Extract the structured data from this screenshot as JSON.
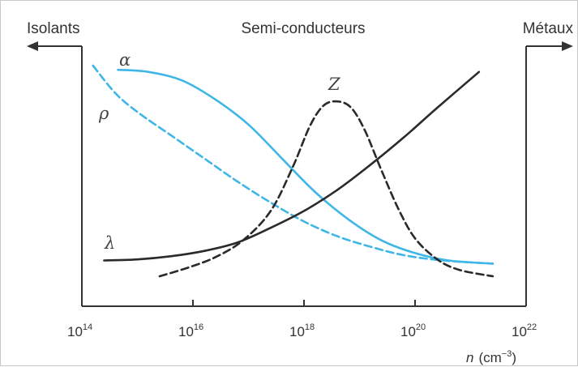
{
  "regions": {
    "left": "Isolants",
    "center": "Semi-conducteurs",
    "right": "Métaux"
  },
  "colors": {
    "axis": "#333333",
    "alpha": "#3fb6e6",
    "rho": "#3fb6e6",
    "lambda": "#2a2a2a",
    "Z": "#2a2a2a"
  },
  "chart_data": {
    "type": "line",
    "xlabel_base": "n",
    "xlabel_unit": "(cm",
    "xlabel_exp": "−3",
    "xlabel_close": ")",
    "xscale": "log",
    "xlim": [
      14,
      22
    ],
    "ylim": [
      0,
      1
    ],
    "ylabel": "",
    "grid": false,
    "xticks": [
      {
        "value": 14,
        "base": "10",
        "exp": "14"
      },
      {
        "value": 16,
        "base": "10",
        "exp": "16"
      },
      {
        "value": 18,
        "base": "10",
        "exp": "18"
      },
      {
        "value": 20,
        "base": "10",
        "exp": "20"
      },
      {
        "value": 22,
        "base": "10",
        "exp": "22"
      }
    ],
    "series": [
      {
        "name": "α",
        "style": "solid",
        "color_key": "alpha",
        "points": [
          [
            14.65,
            0.98
          ],
          [
            15.2,
            0.97
          ],
          [
            15.8,
            0.93
          ],
          [
            16.4,
            0.84
          ],
          [
            17.0,
            0.72
          ],
          [
            17.6,
            0.56
          ],
          [
            18.2,
            0.4
          ],
          [
            18.8,
            0.27
          ],
          [
            19.4,
            0.17
          ],
          [
            20.0,
            0.11
          ],
          [
            20.6,
            0.075
          ],
          [
            21.4,
            0.06
          ]
        ]
      },
      {
        "name": "ρ",
        "style": "dashed",
        "color_key": "rho",
        "points": [
          [
            14.2,
            1.0
          ],
          [
            14.6,
            0.87
          ],
          [
            15.0,
            0.78
          ],
          [
            15.6,
            0.67
          ],
          [
            16.2,
            0.56
          ],
          [
            16.8,
            0.45
          ],
          [
            17.4,
            0.35
          ],
          [
            18.0,
            0.26
          ],
          [
            18.6,
            0.19
          ],
          [
            19.2,
            0.14
          ],
          [
            19.8,
            0.1
          ],
          [
            20.5,
            0.075
          ],
          [
            21.4,
            0.06
          ]
        ]
      },
      {
        "name": "λ",
        "style": "solid",
        "color_key": "lambda",
        "points": [
          [
            14.4,
            0.075
          ],
          [
            15.0,
            0.08
          ],
          [
            15.6,
            0.095
          ],
          [
            16.2,
            0.12
          ],
          [
            16.8,
            0.16
          ],
          [
            17.4,
            0.23
          ],
          [
            18.0,
            0.31
          ],
          [
            18.6,
            0.41
          ],
          [
            19.2,
            0.53
          ],
          [
            19.8,
            0.66
          ],
          [
            20.4,
            0.8
          ],
          [
            21.15,
            0.97
          ]
        ]
      },
      {
        "name": "Z",
        "style": "dashed",
        "color_key": "Z",
        "points": [
          [
            15.4,
            0.0
          ],
          [
            15.9,
            0.04
          ],
          [
            16.4,
            0.09
          ],
          [
            16.9,
            0.17
          ],
          [
            17.4,
            0.31
          ],
          [
            17.8,
            0.52
          ],
          [
            18.1,
            0.71
          ],
          [
            18.35,
            0.81
          ],
          [
            18.6,
            0.83
          ],
          [
            18.85,
            0.8
          ],
          [
            19.1,
            0.69
          ],
          [
            19.4,
            0.5
          ],
          [
            19.7,
            0.32
          ],
          [
            20.0,
            0.18
          ],
          [
            20.4,
            0.08
          ],
          [
            20.8,
            0.03
          ],
          [
            21.4,
            0.0
          ]
        ]
      }
    ]
  }
}
